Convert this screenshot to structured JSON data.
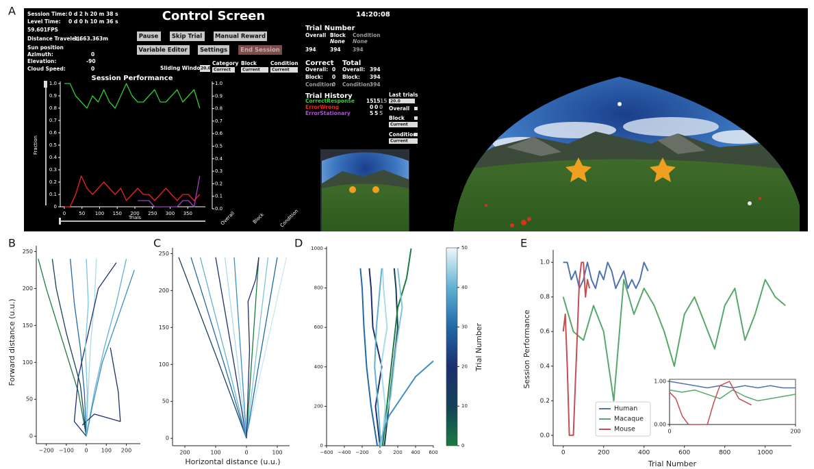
{
  "control_screen": {
    "panel": "A",
    "title": "Control Screen",
    "clock": "14:20:08",
    "status": [
      [
        "Session Time:",
        "0 d   2 h   20 m   38 s"
      ],
      [
        "Level Time:",
        "0 d   0 h   10 m   36 s"
      ]
    ],
    "fps": "59.601FPS",
    "distance": [
      "Distance Traveled:",
      "1,663.363m"
    ],
    "sun_position": "Sun position",
    "azimuth": [
      "Azimuth:",
      0
    ],
    "elevation": [
      "Elevation:",
      -90
    ],
    "cloud_speed": [
      "Cloud Speed:",
      0
    ],
    "buttons": [
      "Pause",
      "Skip Trial",
      "Manual Reward",
      "Variable Editor",
      "Settings",
      "End Session"
    ],
    "sliding_window": {
      "label": "Sliding Window",
      "value": "20.0"
    },
    "filters": [
      {
        "label": "Category",
        "value": "Correct"
      },
      {
        "label": "Block",
        "value": "Current"
      },
      {
        "label": "Condition",
        "value": "Current"
      }
    ],
    "trial_number": {
      "title": "Trial Number",
      "headers": [
        "Overall",
        "Block",
        "Condition"
      ],
      "sub": [
        "None",
        "None"
      ],
      "values": [
        394,
        394,
        394
      ]
    },
    "correct": {
      "title": "Correct",
      "rows": [
        [
          "Overall:",
          0
        ],
        [
          "Block:",
          0
        ],
        [
          "Condition:",
          0
        ]
      ]
    },
    "total": {
      "title": "Total",
      "rows": [
        [
          "Overall:",
          394
        ],
        [
          "Block:",
          394
        ],
        [
          "Condition:",
          394
        ]
      ]
    },
    "trial_history": {
      "title": "Trial History",
      "rows": [
        {
          "name": "CorrectResponse",
          "counts": [
            15,
            15,
            15
          ]
        },
        {
          "name": "ErrorWrong",
          "counts": [
            0,
            0,
            0
          ]
        },
        {
          "name": "ErrorStationary",
          "counts": [
            5,
            5,
            5
          ]
        }
      ]
    },
    "last_trials": {
      "title": "Last trials",
      "value": "20.0",
      "overall": "Overall",
      "block": "Block",
      "block_value": "Current",
      "condition": "Condition",
      "condition_value": "Current"
    },
    "performance_title": "Session Performance"
  },
  "chart_data": [
    {
      "type": "line",
      "ylabel": "Fraction",
      "xlabel": "Trials",
      "x": [
        0,
        16,
        32,
        48,
        64,
        80,
        96,
        112,
        128,
        144,
        160,
        176,
        192,
        208,
        224,
        240,
        256,
        272,
        288,
        304,
        320,
        336,
        352,
        368,
        384
      ],
      "series": [
        {
          "color": "#33cc33",
          "values": [
            1.0,
            1.0,
            0.9,
            0.85,
            0.8,
            0.9,
            0.85,
            0.95,
            0.85,
            0.8,
            0.9,
            1.0,
            0.9,
            0.85,
            0.85,
            0.9,
            0.95,
            0.85,
            0.85,
            0.9,
            0.95,
            0.85,
            0.9,
            0.95,
            0.8
          ]
        },
        {
          "color": "#ee2222",
          "values": [
            0,
            0,
            0.1,
            0.25,
            0.15,
            0.1,
            0.15,
            0.2,
            0.15,
            0.1,
            0.15,
            0.05,
            0.1,
            0.15,
            0.1,
            0.1,
            0.05,
            0.1,
            0.15,
            0.1,
            0.05,
            0.1,
            0.1,
            0.05,
            0.1
          ]
        },
        {
          "color": "#a040c0",
          "values": [
            null,
            null,
            null,
            null,
            null,
            null,
            null,
            null,
            null,
            null,
            null,
            null,
            null,
            0.05,
            0.05,
            0.05,
            0,
            0,
            0,
            0,
            0,
            0.05,
            0.05,
            0,
            0.25
          ]
        }
      ],
      "xlim": [
        0,
        400
      ],
      "ylim": [
        0,
        1.0
      ],
      "xticks": [
        0,
        50,
        100,
        150,
        200,
        250,
        300,
        350
      ],
      "yticks": [
        0,
        0.1,
        0.2,
        0.3,
        0.4,
        0.5,
        0.6,
        0.7,
        0.8,
        0.9,
        {
          "value": 1.0,
          "label": "1.0"
        }
      ]
    },
    {
      "type": "bar",
      "categories": [
        "Overall",
        "Block",
        "Condition"
      ],
      "ylim": [
        0,
        1.0
      ],
      "yticks": [
        {
          "value": 0,
          "label": "0.0"
        },
        0.1,
        0.2,
        0.3,
        0.4,
        0.5,
        0.6,
        0.7,
        0.8,
        0.9,
        {
          "value": 1.0,
          "label": "1.0"
        }
      ]
    },
    {
      "type": "line",
      "panel": "B",
      "ylabel": "Forward distance (u.u.)",
      "series": [
        {
          "color": "#1b7a3e",
          "x": [
            0,
            -40,
            -120,
            -200,
            -240
          ],
          "values": [
            0,
            60,
            130,
            200,
            240
          ]
        },
        {
          "color": "#2168a8",
          "x": [
            0,
            -10,
            -30,
            -60,
            -80
          ],
          "values": [
            0,
            60,
            120,
            180,
            240
          ]
        },
        {
          "color": "#a9dbe9",
          "x": [
            0,
            10,
            20,
            40,
            50
          ],
          "values": [
            0,
            60,
            120,
            180,
            240
          ]
        },
        {
          "color": "#5fb2d3",
          "x": [
            0,
            40,
            90,
            150,
            200
          ],
          "values": [
            0,
            60,
            120,
            180,
            240
          ]
        },
        {
          "color": "#3a8fbf",
          "x": [
            0,
            30,
            80,
            170,
            240
          ],
          "values": [
            0,
            40,
            100,
            170,
            225
          ]
        },
        {
          "color": "#1d2f6e",
          "x": [
            0,
            -60,
            -40,
            60,
            150
          ],
          "values": [
            0,
            20,
            80,
            200,
            235
          ]
        },
        {
          "color": "#1d2f6e",
          "x": [
            -20,
            40,
            170,
            160,
            120
          ],
          "values": [
            15,
            30,
            20,
            60,
            120
          ]
        },
        {
          "color": "#14405a",
          "x": [
            0,
            -30,
            -100,
            -150,
            -170
          ],
          "values": [
            0,
            70,
            140,
            200,
            240
          ]
        },
        {
          "color": "#7cc4dc",
          "x": [
            0,
            5,
            -5,
            10,
            0
          ],
          "values": [
            0,
            60,
            120,
            180,
            240
          ]
        }
      ],
      "xlim": [
        -250,
        270
      ],
      "ylim": [
        -10,
        255
      ],
      "xticks": [
        {
          "value": -200,
          "label": "−200"
        },
        {
          "value": -100,
          "label": "−100"
        },
        0,
        100,
        200
      ],
      "yticks": [
        0,
        50,
        100,
        150,
        200,
        250
      ]
    },
    {
      "type": "line",
      "panel": "C",
      "xlabel": "Horizontal distance (u.u.)",
      "series": [
        {
          "color": "#14405a",
          "x": [
            0,
            -88,
            -220
          ],
          "values": [
            0,
            100,
            245
          ]
        },
        {
          "color": "#2168a8",
          "x": [
            0,
            -72,
            -180
          ],
          "values": [
            0,
            100,
            245
          ]
        },
        {
          "color": "#5fb2d3",
          "x": [
            0,
            -60,
            -150
          ],
          "values": [
            0,
            100,
            245
          ]
        },
        {
          "color": "#1d2f6e",
          "x": [
            0,
            -40,
            -100
          ],
          "values": [
            0,
            100,
            245
          ]
        },
        {
          "color": "#a9dbe9",
          "x": [
            0,
            -28,
            -70
          ],
          "values": [
            0,
            100,
            245
          ]
        },
        {
          "color": "#3a8fbf",
          "x": [
            0,
            -16,
            -40
          ],
          "values": [
            0,
            100,
            245
          ]
        },
        {
          "color": "#1b7a3e",
          "x": [
            0,
            16,
            40
          ],
          "values": [
            0,
            100,
            245
          ]
        },
        {
          "color": "#7cc4dc",
          "x": [
            0,
            28,
            70
          ],
          "values": [
            0,
            100,
            245
          ]
        },
        {
          "color": "#2168a8",
          "x": [
            0,
            40,
            100
          ],
          "values": [
            0,
            100,
            245
          ]
        },
        {
          "color": "#c6e8f0",
          "x": [
            0,
            52,
            130
          ],
          "values": [
            0,
            100,
            245
          ]
        },
        {
          "color": "#1d2f6e",
          "x": [
            0,
            10,
            5,
            30,
            40
          ],
          "values": [
            0,
            120,
            185,
            215,
            245
          ]
        }
      ],
      "xlim": [
        -240,
        140
      ],
      "ylim": [
        -10,
        255
      ],
      "xticks": [
        {
          "value": -200,
          "label": "200"
        },
        {
          "value": -100,
          "label": "100"
        },
        0,
        100
      ],
      "yticks": [
        0,
        50,
        100,
        150,
        200,
        250
      ]
    },
    {
      "type": "line",
      "panel": "D",
      "series": [
        {
          "color": "#1d2f6e",
          "x": [
            0,
            -50,
            20,
            -80,
            -100,
            -120
          ],
          "values": [
            0,
            200,
            400,
            600,
            800,
            900
          ]
        },
        {
          "color": "#a9dbe9",
          "x": [
            20,
            60,
            10,
            80,
            40,
            30
          ],
          "values": [
            0,
            200,
            400,
            600,
            800,
            900
          ]
        },
        {
          "color": "#2168a8",
          "x": [
            -30,
            -100,
            -150,
            -180,
            -200,
            -220
          ],
          "values": [
            0,
            200,
            400,
            600,
            800,
            900
          ]
        },
        {
          "color": "#14405a",
          "x": [
            50,
            100,
            150,
            200,
            180,
            160
          ],
          "values": [
            0,
            200,
            400,
            600,
            800,
            900
          ]
        },
        {
          "color": "#5fb2d3",
          "x": [
            10,
            -20,
            -60,
            -40,
            0,
            20
          ],
          "values": [
            0,
            200,
            400,
            600,
            800,
            900
          ]
        },
        {
          "color": "#3a8fbf",
          "x": [
            -10,
            100,
            250,
            400,
            600
          ],
          "values": [
            0,
            150,
            250,
            350,
            430
          ]
        },
        {
          "color": "#1b7a3e",
          "x": [
            30,
            150,
            200,
            300,
            350
          ],
          "values": [
            0,
            500,
            700,
            850,
            1000
          ]
        },
        {
          "color": "#7cc4dc",
          "x": [
            0,
            120,
            180,
            250,
            200
          ],
          "values": [
            0,
            250,
            500,
            700,
            900
          ]
        }
      ],
      "xlim": [
        -600,
        600
      ],
      "ylim": [
        0,
        1000
      ],
      "xticks": [
        {
          "value": -600,
          "label": "−600"
        },
        {
          "value": -400,
          "label": "−400"
        },
        {
          "value": -200,
          "label": "−200"
        },
        0,
        200,
        400,
        600
      ],
      "yticks": [
        0,
        200,
        400,
        600,
        800,
        1000
      ],
      "colorbar": {
        "label": "Trial Number",
        "lim": [
          0,
          50
        ],
        "ticks": [
          0,
          10,
          20,
          30,
          40,
          50
        ]
      }
    },
    {
      "type": "line",
      "panel": "E",
      "xlabel": "Trial Number",
      "ylabel": "Session Performance",
      "legend": "lower center",
      "series": [
        {
          "name": "Human",
          "color": "#4c72b0",
          "x": [
            0,
            20,
            40,
            60,
            80,
            100,
            120,
            140,
            160,
            180,
            200,
            220,
            240,
            260,
            280,
            300,
            320,
            340,
            360,
            380,
            400,
            420
          ],
          "values": [
            1.0,
            1.0,
            0.9,
            0.95,
            0.85,
            0.9,
            1.0,
            0.9,
            0.85,
            0.95,
            0.9,
            1.0,
            0.95,
            0.85,
            0.9,
            0.95,
            0.85,
            0.9,
            0.85,
            0.9,
            1.0,
            0.95
          ]
        },
        {
          "name": "Macaque",
          "color": "#55a868",
          "x": [
            0,
            50,
            100,
            150,
            200,
            250,
            300,
            350,
            400,
            450,
            500,
            550,
            600,
            650,
            700,
            750,
            800,
            850,
            900,
            950,
            1000,
            1050,
            1100
          ],
          "values": [
            0.8,
            0.6,
            0.55,
            0.75,
            0.6,
            0.2,
            0.9,
            0.7,
            0.85,
            0.75,
            0.6,
            0.4,
            0.7,
            0.8,
            0.65,
            0.5,
            0.75,
            0.85,
            0.55,
            0.7,
            0.9,
            0.8,
            0.75
          ]
        },
        {
          "name": "Mouse",
          "color": "#c44e52",
          "x": [
            0,
            10,
            20,
            30,
            40,
            50,
            60,
            70,
            80,
            90,
            100,
            110,
            120,
            130
          ],
          "values": [
            0.6,
            0.7,
            0.4,
            0,
            0,
            0,
            0.3,
            0.6,
            0.9,
            1.0,
            1.0,
            0.8,
            0.9,
            0.85
          ]
        }
      ],
      "xlim": [
        -50,
        1130
      ],
      "ylim": [
        -0.06,
        1.06
      ],
      "xticks": [
        0,
        200,
        400,
        600,
        800,
        1000
      ],
      "yticks": [
        {
          "value": 0,
          "label": "0.0"
        },
        0.2,
        0.4,
        0.6,
        0.8,
        {
          "value": 1.0,
          "label": "1.0"
        }
      ]
    },
    {
      "type": "line",
      "series": [
        {
          "color": "#4c72b0",
          "x": [
            0,
            20,
            40,
            60,
            80,
            100,
            120,
            140,
            160,
            180,
            200
          ],
          "values": [
            1.0,
            0.95,
            0.9,
            0.85,
            0.9,
            0.85,
            0.9,
            0.85,
            0.9,
            0.85,
            0.85
          ]
        },
        {
          "color": "#55a868",
          "x": [
            0,
            20,
            40,
            60,
            80,
            100,
            120,
            140,
            160,
            180,
            200
          ],
          "values": [
            0.8,
            0.75,
            0.8,
            0.7,
            0.6,
            0.8,
            0.65,
            0.55,
            0.6,
            0.65,
            0.7
          ]
        },
        {
          "color": "#c44e52",
          "x": [
            0,
            10,
            20,
            30,
            60,
            70,
            80,
            95,
            110,
            130
          ],
          "values": [
            0.75,
            0.6,
            0.2,
            0,
            0,
            0.5,
            0.9,
            1.0,
            0.6,
            0.45
          ]
        }
      ],
      "xlim": [
        0,
        200
      ],
      "ylim": [
        0,
        1.0
      ],
      "xticks": [
        0,
        200
      ],
      "yticks": [
        {
          "value": 0,
          "label": "0.00"
        },
        {
          "value": 1.0,
          "label": "1.00"
        }
      ]
    }
  ]
}
